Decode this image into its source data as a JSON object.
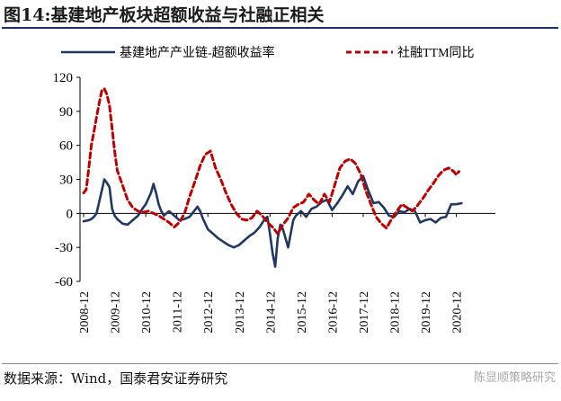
{
  "figure": {
    "title": "图14:基建地产板块超额收益与社融正相关",
    "source": "数据来源：Wind，国泰君安证券研究",
    "watermark": "陈显顺策略研究"
  },
  "colors": {
    "series_1": "#1f3864",
    "series_2": "#c00000",
    "axis": "#000000",
    "title_rule": "#1f2f6b"
  },
  "chart_data": {
    "type": "line",
    "xlabel": "",
    "ylabel": "",
    "ylim": [
      -60,
      120
    ],
    "yticks": [
      -60,
      -30,
      0,
      30,
      60,
      90,
      120
    ],
    "x_start": "2008-12",
    "x_end": "2020-12",
    "x_ticks": [
      "2008-12",
      "2009-12",
      "2010-12",
      "2011-12",
      "2012-12",
      "2013-12",
      "2014-12",
      "2015-12",
      "2016-12",
      "2017-12",
      "2018-12",
      "2019-12",
      "2020-12"
    ],
    "grid": false,
    "legend_position": "top",
    "series": [
      {
        "name": "基建地产产业链-超额收益率",
        "style": "solid",
        "points": [
          [
            "2008-12",
            -7
          ],
          [
            "2009-02",
            -6
          ],
          [
            "2009-03",
            -5
          ],
          [
            "2009-04",
            -3
          ],
          [
            "2009-05",
            0
          ],
          [
            "2009-06",
            10
          ],
          [
            "2009-07",
            20
          ],
          [
            "2009-08",
            30
          ],
          [
            "2009-09",
            27
          ],
          [
            "2009-10",
            23
          ],
          [
            "2009-11",
            4
          ],
          [
            "2009-12",
            -2
          ],
          [
            "2010-01",
            -5
          ],
          [
            "2010-03",
            -9
          ],
          [
            "2010-05",
            -10
          ],
          [
            "2010-07",
            -6
          ],
          [
            "2010-09",
            -2
          ],
          [
            "2010-11",
            5
          ],
          [
            "2010-12",
            8
          ],
          [
            "2011-01",
            13
          ],
          [
            "2011-02",
            18
          ],
          [
            "2011-03",
            26
          ],
          [
            "2011-04",
            18
          ],
          [
            "2011-05",
            8
          ],
          [
            "2011-06",
            2
          ],
          [
            "2011-07",
            -2
          ],
          [
            "2011-08",
            0
          ],
          [
            "2011-09",
            2
          ],
          [
            "2011-11",
            -2
          ],
          [
            "2012-01",
            -6
          ],
          [
            "2012-03",
            -5
          ],
          [
            "2012-05",
            -3
          ],
          [
            "2012-07",
            3
          ],
          [
            "2012-08",
            6
          ],
          [
            "2012-09",
            2
          ],
          [
            "2012-10",
            -4
          ],
          [
            "2012-12",
            -14
          ],
          [
            "2013-02",
            -18
          ],
          [
            "2013-04",
            -22
          ],
          [
            "2013-06",
            -25
          ],
          [
            "2013-08",
            -28
          ],
          [
            "2013-10",
            -30
          ],
          [
            "2013-12",
            -28
          ],
          [
            "2014-02",
            -24
          ],
          [
            "2014-04",
            -20
          ],
          [
            "2014-06",
            -17
          ],
          [
            "2014-08",
            -12
          ],
          [
            "2014-10",
            -5
          ],
          [
            "2014-11",
            -3
          ],
          [
            "2014-12",
            -18
          ],
          [
            "2015-01",
            -35
          ],
          [
            "2015-02",
            -47
          ],
          [
            "2015-03",
            -22
          ],
          [
            "2015-04",
            -10
          ],
          [
            "2015-05",
            -14
          ],
          [
            "2015-06",
            -22
          ],
          [
            "2015-07",
            -30
          ],
          [
            "2015-08",
            -18
          ],
          [
            "2015-09",
            -6
          ],
          [
            "2015-10",
            -2
          ],
          [
            "2015-12",
            2
          ],
          [
            "2016-02",
            -3
          ],
          [
            "2016-04",
            4
          ],
          [
            "2016-06",
            6
          ],
          [
            "2016-08",
            10
          ],
          [
            "2016-10",
            12
          ],
          [
            "2016-12",
            3
          ],
          [
            "2017-02",
            9
          ],
          [
            "2017-04",
            16
          ],
          [
            "2017-06",
            24
          ],
          [
            "2017-08",
            17
          ],
          [
            "2017-10",
            28
          ],
          [
            "2017-12",
            33
          ],
          [
            "2018-02",
            20
          ],
          [
            "2018-04",
            9
          ],
          [
            "2018-06",
            10
          ],
          [
            "2018-08",
            5
          ],
          [
            "2018-10",
            -2
          ],
          [
            "2018-12",
            -3
          ],
          [
            "2019-02",
            2
          ],
          [
            "2019-04",
            1
          ],
          [
            "2019-06",
            4
          ],
          [
            "2019-08",
            2
          ],
          [
            "2019-10",
            -8
          ],
          [
            "2019-12",
            -6
          ],
          [
            "2020-02",
            -5
          ],
          [
            "2020-04",
            -8
          ],
          [
            "2020-06",
            -4
          ],
          [
            "2020-08",
            -3
          ],
          [
            "2020-10",
            8
          ],
          [
            "2020-12",
            8
          ],
          [
            "2021-02",
            9
          ]
        ]
      },
      {
        "name": "社融TTM同比",
        "style": "dashed",
        "points": [
          [
            "2008-12",
            18
          ],
          [
            "2009-01",
            21
          ],
          [
            "2009-02",
            40
          ],
          [
            "2009-03",
            60
          ],
          [
            "2009-04",
            72
          ],
          [
            "2009-05",
            85
          ],
          [
            "2009-06",
            97
          ],
          [
            "2009-07",
            108
          ],
          [
            "2009-08",
            110
          ],
          [
            "2009-09",
            105
          ],
          [
            "2009-10",
            95
          ],
          [
            "2009-11",
            75
          ],
          [
            "2009-12",
            55
          ],
          [
            "2010-01",
            38
          ],
          [
            "2010-03",
            25
          ],
          [
            "2010-05",
            12
          ],
          [
            "2010-07",
            5
          ],
          [
            "2010-09",
            2
          ],
          [
            "2010-11",
            1
          ],
          [
            "2011-01",
            2
          ],
          [
            "2011-03",
            0
          ],
          [
            "2011-05",
            -2
          ],
          [
            "2011-07",
            -5
          ],
          [
            "2011-09",
            -8
          ],
          [
            "2011-11",
            -12
          ],
          [
            "2012-01",
            -8
          ],
          [
            "2012-03",
            0
          ],
          [
            "2012-05",
            15
          ],
          [
            "2012-07",
            28
          ],
          [
            "2012-09",
            42
          ],
          [
            "2012-11",
            52
          ],
          [
            "2013-01",
            55
          ],
          [
            "2013-03",
            40
          ],
          [
            "2013-05",
            30
          ],
          [
            "2013-07",
            18
          ],
          [
            "2013-09",
            8
          ],
          [
            "2013-11",
            0
          ],
          [
            "2014-01",
            -5
          ],
          [
            "2014-03",
            -6
          ],
          [
            "2014-05",
            -4
          ],
          [
            "2014-07",
            2
          ],
          [
            "2014-09",
            -2
          ],
          [
            "2014-11",
            -8
          ],
          [
            "2015-01",
            -12
          ],
          [
            "2015-03",
            -18
          ],
          [
            "2015-05",
            -10
          ],
          [
            "2015-07",
            -4
          ],
          [
            "2015-09",
            5
          ],
          [
            "2015-11",
            8
          ],
          [
            "2016-01",
            10
          ],
          [
            "2016-03",
            17
          ],
          [
            "2016-05",
            12
          ],
          [
            "2016-07",
            8
          ],
          [
            "2016-09",
            17
          ],
          [
            "2016-11",
            10
          ],
          [
            "2017-01",
            25
          ],
          [
            "2017-03",
            40
          ],
          [
            "2017-05",
            46
          ],
          [
            "2017-07",
            48
          ],
          [
            "2017-09",
            44
          ],
          [
            "2017-11",
            35
          ],
          [
            "2018-01",
            20
          ],
          [
            "2018-03",
            8
          ],
          [
            "2018-05",
            -3
          ],
          [
            "2018-07",
            -9
          ],
          [
            "2018-09",
            -13
          ],
          [
            "2018-11",
            -5
          ],
          [
            "2019-01",
            2
          ],
          [
            "2019-03",
            8
          ],
          [
            "2019-05",
            5
          ],
          [
            "2019-07",
            2
          ],
          [
            "2019-09",
            7
          ],
          [
            "2019-11",
            13
          ],
          [
            "2020-01",
            20
          ],
          [
            "2020-03",
            26
          ],
          [
            "2020-05",
            33
          ],
          [
            "2020-07",
            38
          ],
          [
            "2020-09",
            40
          ],
          [
            "2020-11",
            37
          ],
          [
            "2020-12",
            34
          ],
          [
            "2021-01",
            37
          ]
        ]
      }
    ]
  }
}
